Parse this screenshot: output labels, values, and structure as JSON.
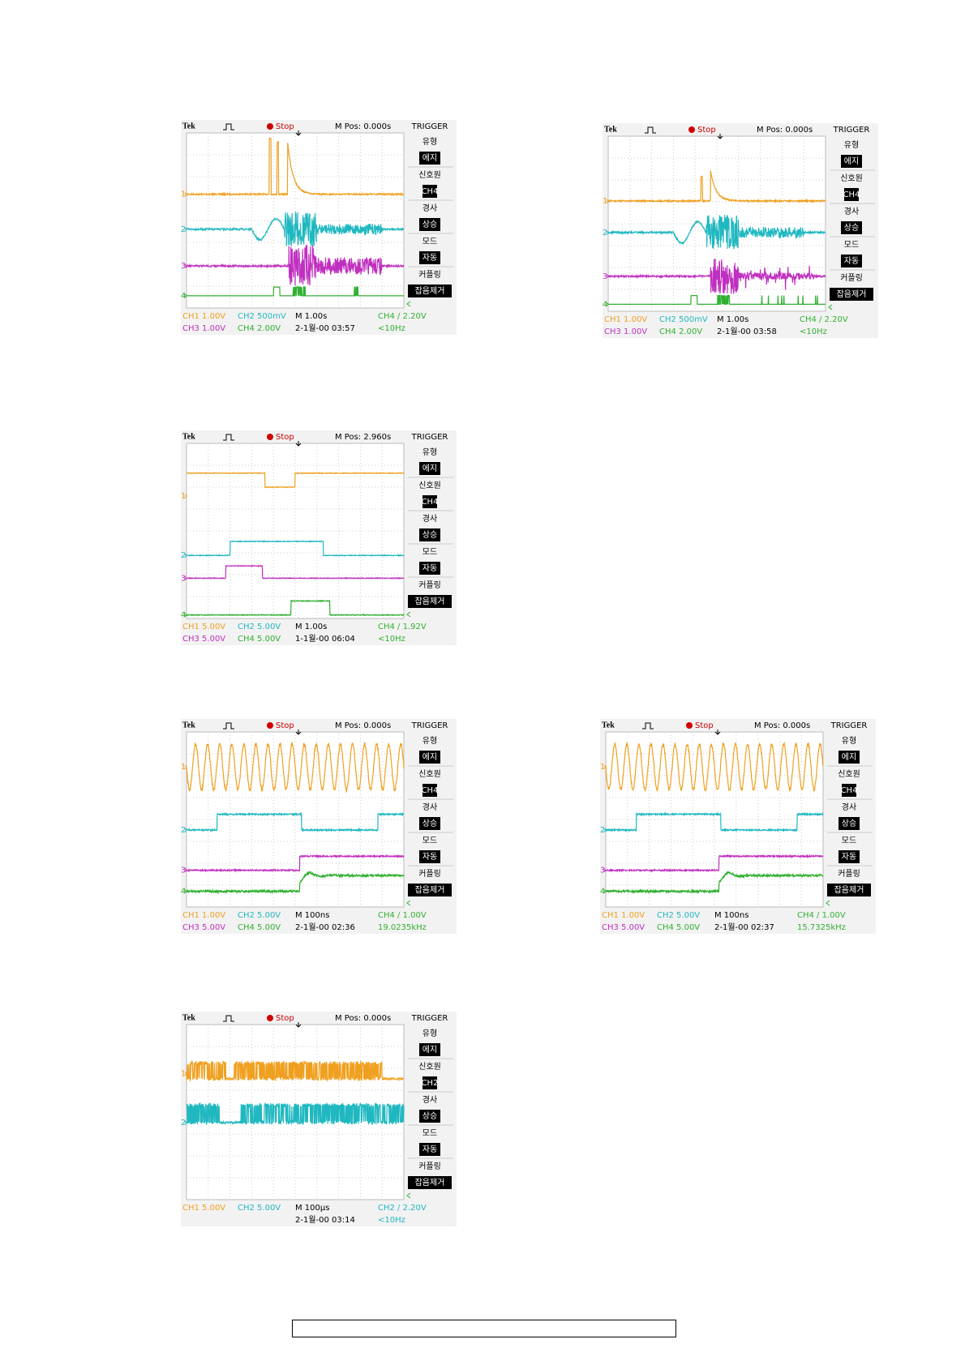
{
  "scopes": [
    {
      "header": {
        "brand": "Tek",
        "status": "Stop",
        "position": "M Pos: 0.000s"
      },
      "markers": [
        {
          "label": "1",
          "color": "#f0a020"
        },
        {
          "label": "2",
          "color": "#20b8c0"
        },
        {
          "label": "3",
          "color": "#c030c0"
        },
        {
          "label": "4",
          "color": "#30b030"
        }
      ],
      "menu": [
        "TRIGGER",
        "유형",
        "에지",
        "신호원",
        "CH4",
        "경사",
        "상승",
        "모드",
        "자동",
        "커플링",
        "잡음제거"
      ],
      "readout": [
        [
          {
            "text": "CH1  1.00V",
            "color": "#f0a020"
          },
          {
            "text": "CH2  500mV",
            "color": "#20b8c0"
          },
          {
            "text": "M 1.00s",
            "color": "#000000"
          },
          {
            "text": "CH4 / 2.20V",
            "color": "#30b030"
          }
        ],
        [
          {
            "text": "CH3  1.00V",
            "color": "#c030c0"
          },
          {
            "text": "CH4  2.00V",
            "color": "#30b030"
          },
          {
            "text": "2-1월-00 03:57",
            "color": "#000000"
          },
          {
            "text": "<10Hz",
            "color": "#30b030"
          }
        ]
      ]
    },
    {
      "header": {
        "brand": "Tek",
        "status": "Stop",
        "position": "M Pos: 0.000s"
      },
      "markers": [
        {
          "label": "1",
          "color": "#f0a020"
        },
        {
          "label": "2",
          "color": "#20b8c0"
        },
        {
          "label": "3",
          "color": "#c030c0"
        },
        {
          "label": "4",
          "color": "#30b030"
        }
      ],
      "menu": [
        "TRIGGER",
        "유형",
        "에지",
        "신호원",
        "CH4",
        "경사",
        "상승",
        "모드",
        "자동",
        "커플링",
        "잡음제거"
      ],
      "readout": [
        [
          {
            "text": "CH1  1.00V",
            "color": "#f0a020"
          },
          {
            "text": "CH2  500mV",
            "color": "#20b8c0"
          },
          {
            "text": "M 1.00s",
            "color": "#000000"
          },
          {
            "text": "CH4 / 2.20V",
            "color": "#30b030"
          }
        ],
        [
          {
            "text": "CH3  1.00V",
            "color": "#c030c0"
          },
          {
            "text": "CH4  2.00V",
            "color": "#30b030"
          },
          {
            "text": "2-1월-00 03:58",
            "color": "#000000"
          },
          {
            "text": "<10Hz",
            "color": "#30b030"
          }
        ]
      ]
    },
    {
      "header": {
        "brand": "Tek",
        "status": "Stop",
        "position": "M Pos: 2.960s"
      },
      "markers": [
        {
          "label": "1",
          "color": "#f0a020"
        },
        {
          "label": "2",
          "color": "#20b8c0"
        },
        {
          "label": "3",
          "color": "#c030c0"
        },
        {
          "label": "4",
          "color": "#30b030"
        }
      ],
      "menu": [
        "TRIGGER",
        "유형",
        "에지",
        "신호원",
        "CH4",
        "경사",
        "상승",
        "모드",
        "자동",
        "커플링",
        "잡음제거"
      ],
      "readout": [
        [
          {
            "text": "CH1  5.00V",
            "color": "#f0a020"
          },
          {
            "text": "CH2  5.00V",
            "color": "#20b8c0"
          },
          {
            "text": "M 1.00s",
            "color": "#000000"
          },
          {
            "text": "CH4 / 1.92V",
            "color": "#30b030"
          }
        ],
        [
          {
            "text": "CH3  5.00V",
            "color": "#c030c0"
          },
          {
            "text": "CH4  5.00V",
            "color": "#30b030"
          },
          {
            "text": "1-1월-00 06:04",
            "color": "#000000"
          },
          {
            "text": "<10Hz",
            "color": "#30b030"
          }
        ]
      ]
    },
    {
      "header": {
        "brand": "Tek",
        "status": "Stop",
        "position": "M Pos: 0.000s"
      },
      "markers": [
        {
          "label": "1",
          "color": "#f0a020"
        },
        {
          "label": "2",
          "color": "#20b8c0"
        },
        {
          "label": "3",
          "color": "#c030c0"
        },
        {
          "label": "4",
          "color": "#30b030"
        }
      ],
      "menu": [
        "TRIGGER",
        "유형",
        "에지",
        "신호원",
        "CH4",
        "경사",
        "상승",
        "모드",
        "자동",
        "커플링",
        "잡음제거"
      ],
      "readout": [
        [
          {
            "text": "CH1  1.00V",
            "color": "#f0a020"
          },
          {
            "text": "CH2  5.00V",
            "color": "#20b8c0"
          },
          {
            "text": "M 100ns",
            "color": "#000000"
          },
          {
            "text": "CH4 / 1.00V",
            "color": "#30b030"
          }
        ],
        [
          {
            "text": "CH3  5.00V",
            "color": "#c030c0"
          },
          {
            "text": "CH4  5.00V",
            "color": "#30b030"
          },
          {
            "text": "2-1월-00 02:36",
            "color": "#000000"
          },
          {
            "text": "19.0235kHz",
            "color": "#30b030"
          }
        ]
      ]
    },
    {
      "header": {
        "brand": "Tek",
        "status": "Stop",
        "position": "M Pos: 0.000s"
      },
      "markers": [
        {
          "label": "1",
          "color": "#f0a020"
        },
        {
          "label": "2",
          "color": "#20b8c0"
        },
        {
          "label": "3",
          "color": "#c030c0"
        },
        {
          "label": "4",
          "color": "#30b030"
        }
      ],
      "menu": [
        "TRIGGER",
        "유형",
        "에지",
        "신호원",
        "CH4",
        "경사",
        "상승",
        "모드",
        "자동",
        "커플링",
        "잡음제거"
      ],
      "readout": [
        [
          {
            "text": "CH1  1.00V",
            "color": "#f0a020"
          },
          {
            "text": "CH2  5.00V",
            "color": "#20b8c0"
          },
          {
            "text": "M 100ns",
            "color": "#000000"
          },
          {
            "text": "CH4 / 1.00V",
            "color": "#30b030"
          }
        ],
        [
          {
            "text": "CH3  5.00V",
            "color": "#c030c0"
          },
          {
            "text": "CH4  5.00V",
            "color": "#30b030"
          },
          {
            "text": "2-1월-00 02:37",
            "color": "#000000"
          },
          {
            "text": "15.7325kHz",
            "color": "#30b030"
          }
        ]
      ]
    },
    {
      "header": {
        "brand": "Tek",
        "status": "Stop",
        "position": "M Pos: 0.000s"
      },
      "markers": [
        {
          "label": "1",
          "color": "#f0a020"
        },
        {
          "label": "2",
          "color": "#20b8c0"
        }
      ],
      "menu": [
        "TRIGGER",
        "유형",
        "에지",
        "신호원",
        "CH2",
        "경사",
        "상승",
        "모드",
        "자동",
        "커플링",
        "잡음제거"
      ],
      "readout": [
        [
          {
            "text": "CH1  5.00V",
            "color": "#f0a020"
          },
          {
            "text": "CH2  5.00V",
            "color": "#20b8c0"
          },
          {
            "text": "M 100μs",
            "color": "#000000"
          },
          {
            "text": "CH2 / 2.20V",
            "color": "#20b8c0"
          }
        ],
        [
          {
            "text": "2-1월-00 03:14",
            "color": "#000000"
          },
          {
            "text": "<10Hz",
            "color": "#20b8c0"
          }
        ]
      ]
    }
  ]
}
